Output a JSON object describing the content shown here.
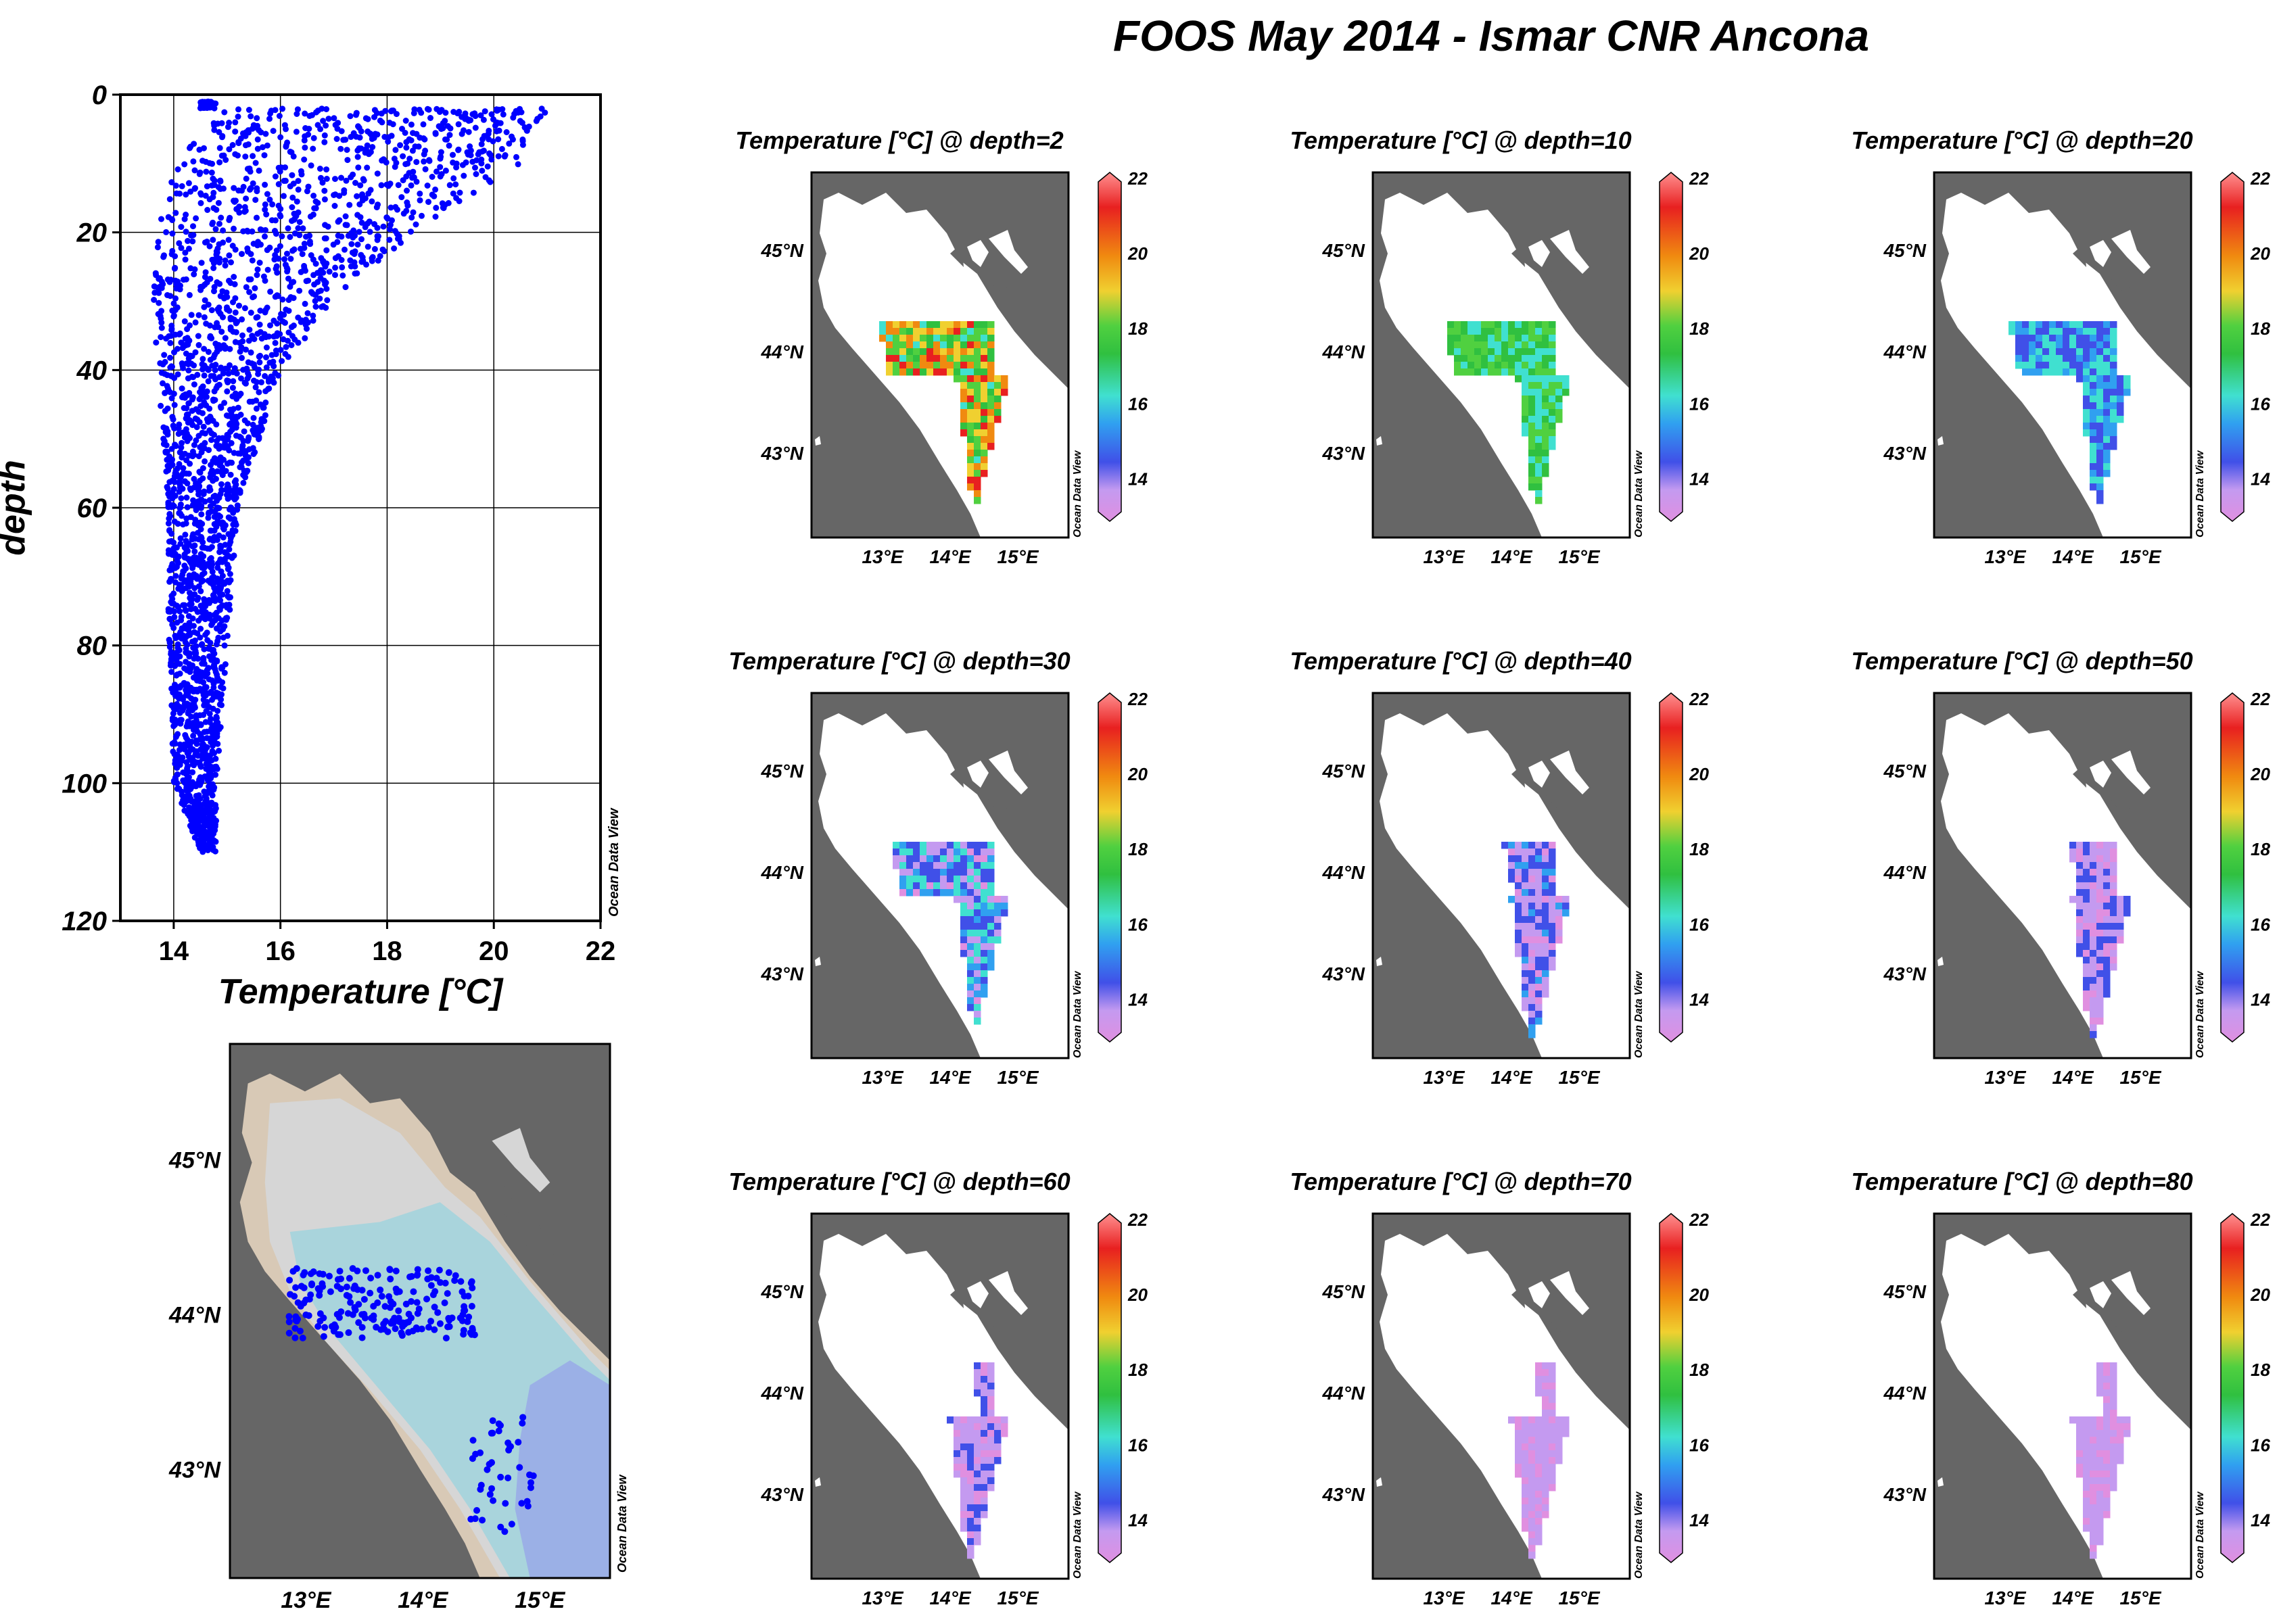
{
  "title": "FOOS May 2014 - Ismar CNR Ancona",
  "watermark": "Ocean Data View",
  "colors": {
    "land": "#666666",
    "sea": "#ffffff",
    "profile_points": "#0000ff",
    "station_points": "#0000ff",
    "shelf_shallow": "#d8c9b6",
    "shelf_mid": "#d6d6d6",
    "shelf_deep": "#a9d4dc",
    "basin": "#9bb0e6"
  },
  "profile_chart": {
    "xlabel": "Temperature [°C]",
    "ylabel": "depth",
    "x_ticks": [
      "14",
      "16",
      "18",
      "20",
      "22"
    ],
    "y_ticks": [
      "0",
      "20",
      "40",
      "60",
      "80",
      "100",
      "120"
    ],
    "watermark": "Ocean Data View"
  },
  "chart_data": [
    {
      "type": "scatter",
      "title": "",
      "xlabel": "Temperature [°C]",
      "ylabel": "depth",
      "xlim": [
        13,
        22
      ],
      "ylim": [
        120,
        0
      ],
      "y_reversed": true,
      "grid": true,
      "series": [
        {
          "points_envelope": [
            {
              "depth": 2,
              "t_min": 15.0,
              "t_max": 21.0
            },
            {
              "depth": 10,
              "t_min": 14.0,
              "t_max": 20.5
            },
            {
              "depth": 20,
              "t_min": 13.7,
              "t_max": 18.5
            },
            {
              "depth": 30,
              "t_min": 13.6,
              "t_max": 17.0
            },
            {
              "depth": 40,
              "t_min": 13.7,
              "t_max": 16.0
            },
            {
              "depth": 50,
              "t_min": 13.8,
              "t_max": 15.6
            },
            {
              "depth": 60,
              "t_min": 13.9,
              "t_max": 15.2
            },
            {
              "depth": 80,
              "t_min": 13.9,
              "t_max": 15.0
            },
            {
              "depth": 100,
              "t_min": 14.0,
              "t_max": 14.8
            },
            {
              "depth": 110,
              "t_min": 14.5,
              "t_max": 14.8
            }
          ]
        }
      ]
    },
    {
      "type": "heatmap",
      "title": "Temperature [°C] @ depth=2",
      "variable": "Temperature [°C]",
      "depth": 2,
      "colorbar_range": [
        13,
        22
      ],
      "dominant_range": [
        16.5,
        21.5
      ]
    },
    {
      "type": "heatmap",
      "title": "Temperature [°C] @ depth=10",
      "variable": "Temperature [°C]",
      "depth": 10,
      "colorbar_range": [
        13,
        22
      ],
      "dominant_range": [
        16.5,
        18.5
      ]
    },
    {
      "type": "heatmap",
      "title": "Temperature [°C] @ depth=20",
      "variable": "Temperature [°C]",
      "depth": 20,
      "colorbar_range": [
        13,
        22
      ],
      "dominant_range": [
        14.5,
        17.0
      ]
    },
    {
      "type": "heatmap",
      "title": "Temperature [°C] @ depth=30",
      "variable": "Temperature [°C]",
      "depth": 30,
      "colorbar_range": [
        13,
        22
      ],
      "dominant_range": [
        13.5,
        17.0
      ]
    },
    {
      "type": "heatmap",
      "title": "Temperature [°C] @ depth=40",
      "variable": "Temperature [°C]",
      "depth": 40,
      "colorbar_range": [
        13,
        22
      ],
      "dominant_range": [
        13.5,
        16.0
      ]
    },
    {
      "type": "heatmap",
      "title": "Temperature [°C] @ depth=50",
      "variable": "Temperature [°C]",
      "depth": 50,
      "colorbar_range": [
        13,
        22
      ],
      "dominant_range": [
        13.5,
        15.0
      ]
    },
    {
      "type": "heatmap",
      "title": "Temperature [°C] @ depth=60",
      "variable": "Temperature [°C]",
      "depth": 60,
      "colorbar_range": [
        13,
        22
      ],
      "dominant_range": [
        13.5,
        15.0
      ]
    },
    {
      "type": "heatmap",
      "title": "Temperature [°C] @ depth=70",
      "variable": "Temperature [°C]",
      "depth": 70,
      "colorbar_range": [
        13,
        22
      ],
      "dominant_range": [
        13.5,
        14.5
      ]
    },
    {
      "type": "heatmap",
      "title": "Temperature [°C] @ depth=80",
      "variable": "Temperature [°C]",
      "depth": 80,
      "colorbar_range": [
        13,
        22
      ],
      "dominant_range": [
        13.5,
        14.5
      ]
    }
  ],
  "station_map": {
    "type": "map",
    "lon_labels": [
      "13°E",
      "14°E",
      "15°E"
    ],
    "lat_labels": [
      "45°N",
      "44°N",
      "43°N"
    ],
    "watermark": "Ocean Data View",
    "stations": [
      {
        "lon": 12.9,
        "lat": 44.12
      },
      {
        "lon": 13.05,
        "lat": 44.2
      },
      {
        "lon": 13.2,
        "lat": 44.25
      },
      {
        "lon": 13.35,
        "lat": 44.18
      },
      {
        "lon": 13.5,
        "lat": 44.1
      },
      {
        "lon": 13.65,
        "lat": 44.12
      },
      {
        "lon": 13.8,
        "lat": 44.15
      },
      {
        "lon": 13.95,
        "lat": 44.08
      },
      {
        "lon": 14.1,
        "lat": 44.05
      },
      {
        "lon": 14.25,
        "lat": 43.98
      },
      {
        "lon": 14.35,
        "lat": 43.9
      },
      {
        "lon": 13.0,
        "lat": 44.0
      },
      {
        "lon": 13.15,
        "lat": 43.98
      },
      {
        "lon": 13.3,
        "lat": 44.02
      },
      {
        "lon": 13.45,
        "lat": 43.95
      },
      {
        "lon": 13.6,
        "lat": 43.92
      },
      {
        "lon": 13.75,
        "lat": 43.95
      },
      {
        "lon": 13.9,
        "lat": 43.98
      },
      {
        "lon": 14.05,
        "lat": 43.92
      },
      {
        "lon": 14.2,
        "lat": 43.85
      },
      {
        "lon": 14.45,
        "lat": 43.1
      },
      {
        "lon": 14.55,
        "lat": 43.0
      },
      {
        "lon": 14.65,
        "lat": 43.25
      },
      {
        "lon": 14.75,
        "lat": 43.15
      },
      {
        "lon": 14.6,
        "lat": 42.8
      },
      {
        "lon": 14.7,
        "lat": 42.6
      },
      {
        "lon": 14.85,
        "lat": 43.3
      },
      {
        "lon": 14.5,
        "lat": 42.9
      }
    ]
  },
  "colorbar": {
    "ticks": [
      "22",
      "20",
      "18",
      "16",
      "14"
    ],
    "watermark": "Ocean Data View"
  },
  "map_panel_axes": {
    "lon_labels": [
      "13°E",
      "14°E",
      "15°E"
    ],
    "lat_labels": [
      "45°N",
      "44°N",
      "43°N"
    ]
  }
}
